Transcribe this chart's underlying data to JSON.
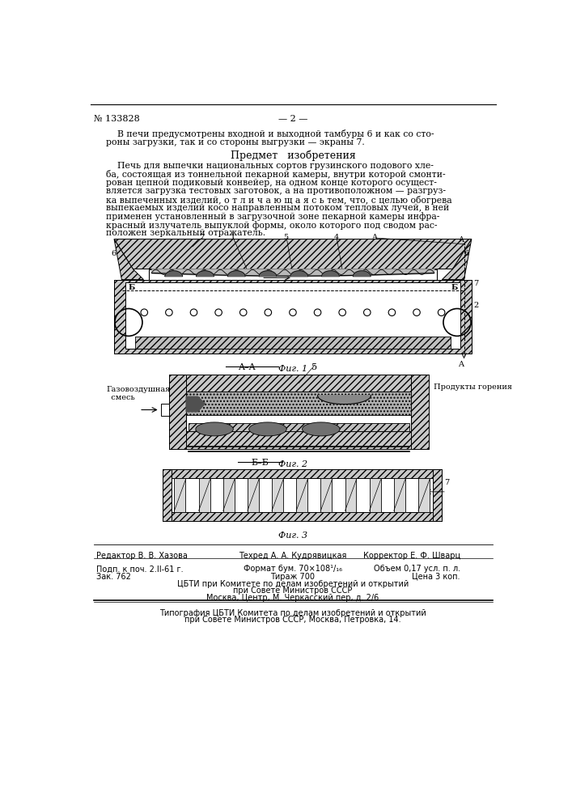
{
  "bg_color": "#ffffff",
  "patent_number": "№ 133828",
  "page_number": "— 2 —",
  "intro_line1": "    В печи предусмотрены входной и выходной тамбуры 6 и как со сто-",
  "intro_line2": "роны загрузки, так и со стороны выгрузки — экраны 7.",
  "section_title": "Предмет   изобретения",
  "claim_line1": "    Печь для выпечки национальных сортов грузинского подового хле-",
  "claim_line2": "ба, состоящая из тоннельной пекарной камеры, внутри которой смонти-",
  "claim_line3": "рован цепной подиковый конвейер, на одном конце которого осущест-",
  "claim_line4": "вляется загрузка тестовых заготовок, а на противоположном — разгруз-",
  "claim_line5": "ка выпеченных изделий, о т л и ч а ю щ а я с ь тем, что, с целью обогрева",
  "claim_line6": "выпекаемых изделий косо направленным потоком тепловых лучей, в ней",
  "claim_line7": "применен установленный в загрузочной зоне пекарной камеры инфра-",
  "claim_line8": "красный излучатель выпуклой формы, около которого под сводом рас-",
  "claim_line9": "положен зеркальный отражатель.",
  "fig1_caption": "Фиг. 1",
  "fig2_caption": "Фиг. 2",
  "fig3_caption": "Фиг. 3",
  "label_AA": "A–A",
  "label_BB": "Б–Б",
  "label_5": "5",
  "gas_line1": "Газовоздушная",
  "gas_line2": "  смесь",
  "products": "Продукты горения",
  "editor_line": "Редактор В. В. Хазова",
  "techred_line": "Техред А. А. Кудрявицкая",
  "corrector_line": "Корректор Е. Ф. Шварц",
  "podp_line": "Подп. к поч. 2.ІІ-61 г.",
  "format_line": "Формат бум. 70×108¹/₁₆",
  "obem_line": "Объем 0,17 усл. п. л.",
  "zak_line": "Зак. 762",
  "tirazh_line": "Тираж 700",
  "cena_line": "Цена 3 коп.",
  "cbti_line1": "ЦБТИ при Комитете по делам изобретений и открытий",
  "cbti_line2": "при Совете Министров СССР",
  "cbti_line3": "Москва, Центр, М. Черкасский пер, д. 2/6",
  "tipogr_line1": "Типография ЦБТИ Комитета по делам изобретений и открытий",
  "tipogr_line2": "при Совете Министров СССР, Москва, Петровка, 14."
}
